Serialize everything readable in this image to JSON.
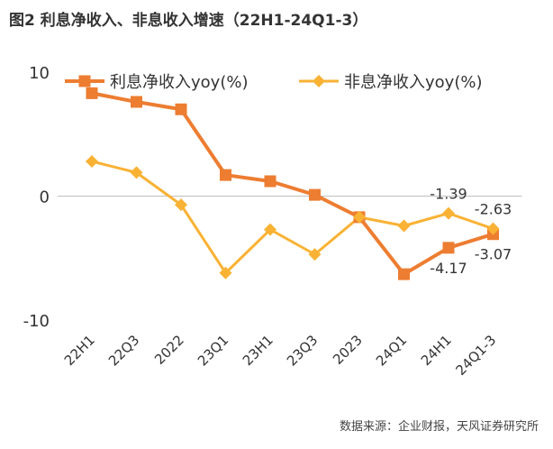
{
  "title": "图2 利息净收入、非息收入增速（22H1-24Q1-3）",
  "source": "数据来源：企业财报，天风证券研究所",
  "colors": {
    "interest": "#ED7D31",
    "noninterest": "#F9B234",
    "axis": "#333333",
    "grid": "#D9D9D9"
  },
  "chart_data": {
    "type": "line",
    "title": "图2 利息净收入、非息收入增速（22H1-24Q1-3）",
    "xlabel": "",
    "ylabel": "",
    "categories": [
      "22H1",
      "22Q3",
      "2022",
      "23Q1",
      "23H1",
      "23Q3",
      "2023",
      "24Q1",
      "24H1",
      "24Q1-3"
    ],
    "ylim": [
      -10,
      10
    ],
    "yticks": [
      "10",
      "0",
      "-10"
    ],
    "grid": false,
    "legend": "top",
    "series": [
      {
        "name": "利息净收入yoy(%)",
        "marker": "square",
        "values": [
          8.3,
          7.6,
          7.0,
          1.7,
          1.2,
          0.1,
          -1.7,
          -6.3,
          -4.17,
          -3.07
        ]
      },
      {
        "name": "非息净收入yoy(%)",
        "marker": "diamond",
        "values": [
          2.8,
          1.9,
          -0.7,
          -6.2,
          -2.7,
          -4.7,
          -1.7,
          -2.4,
          -1.39,
          -2.63
        ]
      }
    ],
    "annotations": [
      {
        "series": 0,
        "index": 8,
        "text": "-4.17",
        "pos": "below"
      },
      {
        "series": 0,
        "index": 9,
        "text": "-3.07",
        "pos": "below"
      },
      {
        "series": 1,
        "index": 8,
        "text": "-1.39",
        "pos": "above"
      },
      {
        "series": 1,
        "index": 9,
        "text": "-2.63",
        "pos": "above"
      }
    ]
  }
}
